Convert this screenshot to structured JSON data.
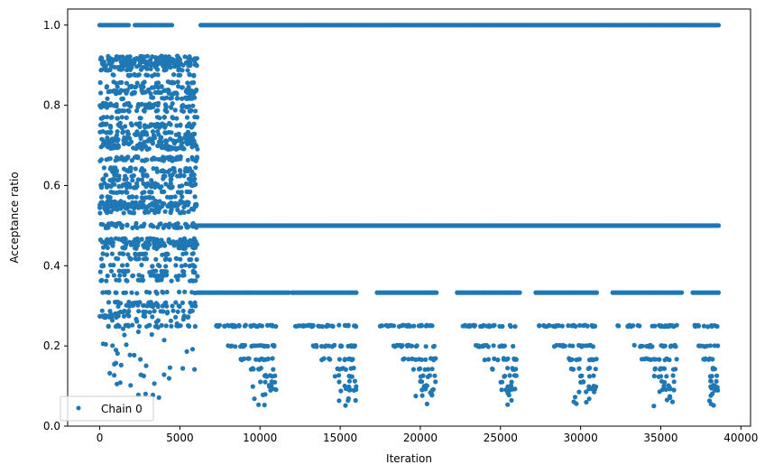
{
  "chart_data": {
    "type": "scatter",
    "title": "",
    "xlabel": "Iteration",
    "ylabel": "Acceptance ratio",
    "xlim": [
      -2000,
      40600
    ],
    "ylim": [
      0.0,
      1.04
    ],
    "xticks": [
      0,
      5000,
      10000,
      15000,
      20000,
      25000,
      30000,
      35000,
      40000
    ],
    "xtick_labels": [
      "0",
      "5000",
      "10000",
      "15000",
      "20000",
      "25000",
      "30000",
      "35000",
      "40000"
    ],
    "yticks": [
      0.0,
      0.2,
      0.4,
      0.6,
      0.8,
      1.0
    ],
    "ytick_labels": [
      "0.0",
      "0.2",
      "0.4",
      "0.6",
      "0.8",
      "1.0"
    ],
    "grid": false,
    "legend_position": "lower-left",
    "series": [
      {
        "name": "Chain 0",
        "color": "#1f77b4",
        "marker": "circle",
        "x_range": [
          0,
          38600
        ],
        "description_levels": [
          1.0,
          0.5,
          0.333,
          0.25,
          0.2,
          0.167,
          0.143,
          0.125,
          0.111,
          0.1
        ],
        "notes_early_phase_end": 6100
      }
    ]
  }
}
